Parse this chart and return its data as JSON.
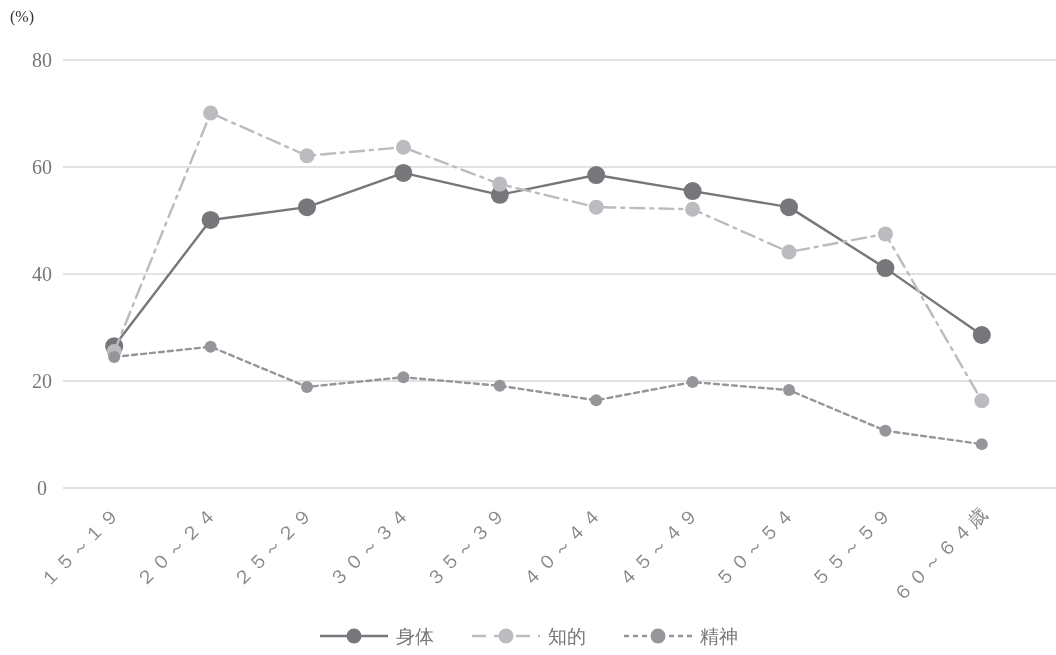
{
  "chart_data": {
    "type": "line",
    "ylabel": "(%)",
    "categories": [
      "１５～１９",
      "２０～２４",
      "２５～２９",
      "３０～３４",
      "３５～３９",
      "４０～４４",
      "４５～４９",
      "５０～５４",
      "５５～５９",
      "６０～６４歳"
    ],
    "series": [
      {
        "name": "身体",
        "color": "#76777b",
        "line_style": "solid",
        "values": [
          26.5,
          50.1,
          52.5,
          58.9,
          54.8,
          58.5,
          55.5,
          52.5,
          41.1,
          28.6
        ]
      },
      {
        "name": "知的",
        "color": "#bcbcc0",
        "line_style": "dashdot",
        "values": [
          25.5,
          70.1,
          62.1,
          63.7,
          56.8,
          52.5,
          52.1,
          44.1,
          47.5,
          16.3
        ]
      },
      {
        "name": "精神",
        "color": "#96969a",
        "line_style": "dashed",
        "values": [
          24.5,
          26.4,
          18.9,
          20.7,
          19.1,
          16.4,
          19.8,
          18.3,
          10.7,
          8.2
        ]
      }
    ],
    "ylim": [
      0,
      80
    ],
    "yticks": [
      0,
      20,
      40,
      60,
      80
    ],
    "grid": "y",
    "legend": "bottom",
    "marker": "circle"
  }
}
